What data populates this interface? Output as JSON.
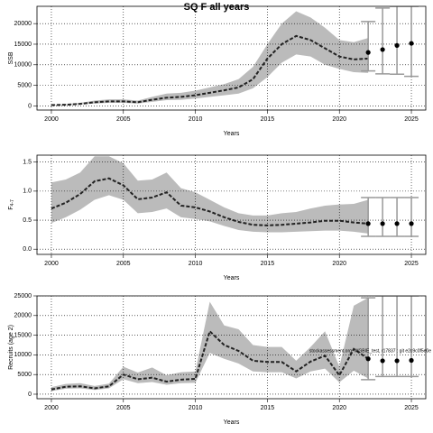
{
  "title": "SQ F all years",
  "chart_data": [
    {
      "type": "line",
      "ylabel": "SSB",
      "xlabel": "Years",
      "x": [
        2000,
        2001,
        2002,
        2003,
        2004,
        2005,
        2006,
        2007,
        2008,
        2009,
        2010,
        2011,
        2012,
        2013,
        2014,
        2015,
        2016,
        2017,
        2018,
        2019,
        2020,
        2021,
        2022
      ],
      "values": [
        200,
        300,
        500,
        900,
        1100,
        1100,
        900,
        1500,
        2000,
        2200,
        2600,
        3200,
        3800,
        4500,
        6500,
        11500,
        15000,
        17000,
        16000,
        14000,
        12000,
        11300,
        11500
      ],
      "band_upper": [
        300,
        450,
        750,
        1300,
        1600,
        1600,
        1300,
        2200,
        3000,
        3200,
        3700,
        4500,
        5300,
        6500,
        9500,
        15000,
        20000,
        23000,
        21500,
        19000,
        16000,
        15500,
        16500
      ],
      "band_lower": [
        120,
        200,
        350,
        600,
        750,
        750,
        600,
        1000,
        1400,
        1500,
        1800,
        2200,
        2600,
        3000,
        4300,
        7000,
        10500,
        12500,
        12000,
        10000,
        9000,
        8200,
        8000
      ],
      "forecast_x": [
        2022,
        2023,
        2024,
        2025
      ],
      "forecast_values": [
        13000,
        13700,
        14700,
        15200
      ],
      "forecast_lower": [
        8500,
        7800,
        7700,
        7200
      ],
      "forecast_upper": [
        20500,
        23800,
        24200,
        24200
      ],
      "xlim": [
        1999,
        2026
      ],
      "xticks": [
        2000,
        2005,
        2010,
        2015,
        2020,
        2025
      ],
      "ylim": [
        -1000,
        24200
      ],
      "yticks": [
        0,
        5000,
        10000,
        15000,
        20000
      ],
      "grid": true,
      "line_color": "#222222",
      "band_color": "#bbbbbb",
      "errorbar_color": "#999999"
    },
    {
      "type": "line",
      "ylabel": "F",
      "ylabel_sub": "4-7",
      "xlabel": "Years",
      "x": [
        2000,
        2001,
        2002,
        2003,
        2004,
        2005,
        2006,
        2007,
        2008,
        2009,
        2010,
        2011,
        2012,
        2013,
        2014,
        2015,
        2016,
        2017,
        2018,
        2019,
        2020,
        2021,
        2022
      ],
      "values": [
        0.7,
        0.8,
        0.95,
        1.17,
        1.22,
        1.1,
        0.86,
        0.89,
        0.98,
        0.75,
        0.72,
        0.65,
        0.55,
        0.47,
        0.42,
        0.41,
        0.42,
        0.44,
        0.46,
        0.49,
        0.49,
        0.46,
        0.44
      ],
      "band_upper": [
        1.15,
        1.2,
        1.32,
        1.6,
        1.6,
        1.48,
        1.18,
        1.2,
        1.32,
        1.05,
        0.98,
        0.85,
        0.72,
        0.62,
        0.58,
        0.58,
        0.62,
        0.64,
        0.7,
        0.75,
        0.77,
        0.78,
        0.85
      ],
      "band_lower": [
        0.45,
        0.55,
        0.68,
        0.85,
        0.93,
        0.85,
        0.62,
        0.64,
        0.7,
        0.55,
        0.52,
        0.48,
        0.4,
        0.33,
        0.3,
        0.29,
        0.29,
        0.3,
        0.31,
        0.32,
        0.32,
        0.3,
        0.27
      ],
      "forecast_x": [
        2022,
        2023,
        2024,
        2025
      ],
      "forecast_values": [
        0.44,
        0.44,
        0.44,
        0.44
      ],
      "forecast_lower": [
        0.22,
        0.22,
        0.22,
        0.22
      ],
      "forecast_upper": [
        0.89,
        0.89,
        0.89,
        0.89
      ],
      "xlim": [
        1999,
        2026
      ],
      "xticks": [
        2000,
        2005,
        2010,
        2015,
        2020,
        2025
      ],
      "ylim": [
        -0.09,
        1.62
      ],
      "yticks": [
        {
          "value": 0,
          "label": "0.0"
        },
        0.5,
        {
          "value": 1,
          "label": "1.0"
        },
        1.5
      ],
      "grid": true,
      "line_color": "#222222",
      "band_color": "#bbbbbb",
      "errorbar_color": "#999999"
    },
    {
      "type": "line",
      "ylabel": "Recruits (age 2)",
      "xlabel": "Years",
      "annotation": "stockassessment.org, WGBIE_test, r17837 : git e2c9c0f5e0e",
      "x": [
        2000,
        2001,
        2002,
        2003,
        2004,
        2005,
        2006,
        2007,
        2008,
        2009,
        2010,
        2011,
        2012,
        2013,
        2014,
        2015,
        2016,
        2017,
        2018,
        2019,
        2020,
        2021,
        2022
      ],
      "values": [
        1200,
        1900,
        2000,
        1500,
        2000,
        5000,
        3800,
        4200,
        3200,
        3700,
        3900,
        16000,
        12500,
        11000,
        8500,
        8200,
        8200,
        5800,
        8300,
        9800,
        4800,
        11500,
        9000
      ],
      "band_upper": [
        1800,
        2600,
        2800,
        2100,
        2700,
        7000,
        5500,
        6800,
        4800,
        5600,
        5800,
        23500,
        17500,
        16500,
        12500,
        12000,
        12000,
        8500,
        12000,
        16000,
        7000,
        22500,
        24500
      ],
      "band_lower": [
        800,
        1400,
        1500,
        1100,
        1500,
        3800,
        2800,
        3100,
        2400,
        2800,
        2900,
        10500,
        9000,
        7800,
        5800,
        5600,
        5600,
        4000,
        5800,
        6500,
        3000,
        6000,
        4000
      ],
      "forecast_x": [
        2022,
        2023,
        2024,
        2025
      ],
      "forecast_values": [
        9000,
        8500,
        8500,
        8600
      ],
      "forecast_lower": [
        3700,
        4500,
        4500,
        4500
      ],
      "forecast_upper": [
        24500,
        25000,
        25000,
        25000
      ],
      "xlim": [
        1999,
        2026
      ],
      "xticks": [
        2000,
        2005,
        2010,
        2015,
        2020,
        2025
      ],
      "ylim": [
        -1150,
        25000
      ],
      "yticks": [
        0,
        5000,
        10000,
        15000,
        20000,
        25000
      ],
      "grid": true,
      "line_color": "#222222",
      "band_color": "#bbbbbb",
      "errorbar_color": "#999999"
    }
  ]
}
